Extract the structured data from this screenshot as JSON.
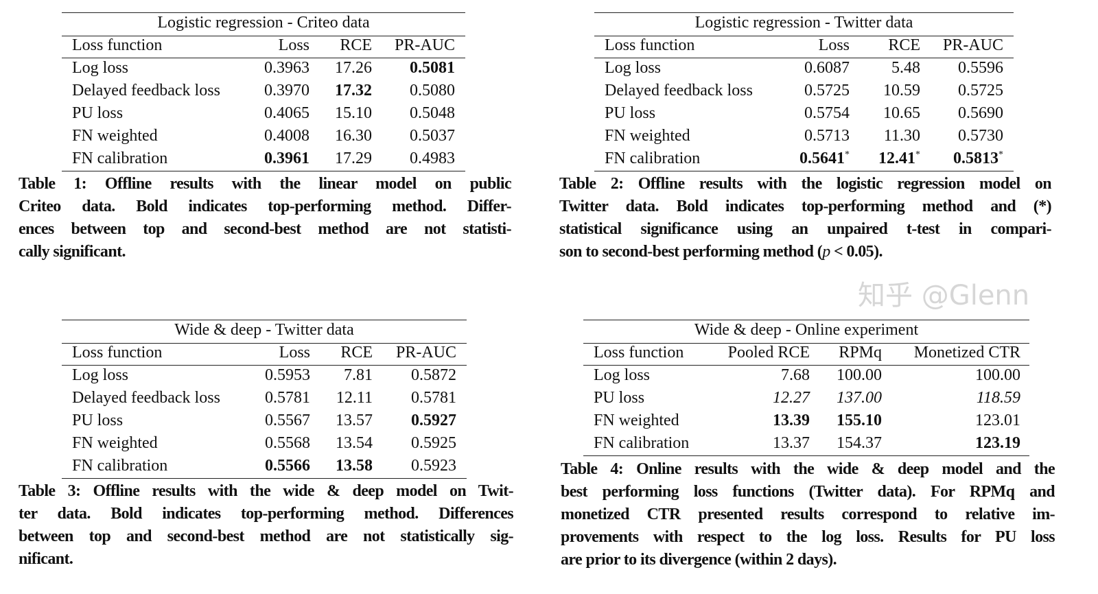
{
  "tables": [
    {
      "title": "Logistic regression - Criteo data",
      "headers": [
        "Loss function",
        "Loss",
        "RCE",
        "PR-AUC"
      ],
      "rows": [
        [
          {
            "v": "Log loss"
          },
          {
            "v": "0.3963"
          },
          {
            "v": "17.26"
          },
          {
            "v": "0.5081",
            "b": true
          }
        ],
        [
          {
            "v": "Delayed feedback loss"
          },
          {
            "v": "0.3970"
          },
          {
            "v": "17.32",
            "b": true
          },
          {
            "v": "0.5080"
          }
        ],
        [
          {
            "v": "PU loss"
          },
          {
            "v": "0.4065"
          },
          {
            "v": "15.10"
          },
          {
            "v": "0.5048"
          }
        ],
        [
          {
            "v": "FN weighted"
          },
          {
            "v": "0.4008"
          },
          {
            "v": "16.30"
          },
          {
            "v": "0.5037"
          }
        ],
        [
          {
            "v": "FN calibration"
          },
          {
            "v": "0.3961",
            "b": true
          },
          {
            "v": "17.29"
          },
          {
            "v": "0.4983"
          }
        ]
      ],
      "caption": [
        "Table 1: Offline results with the linear model on public",
        "Criteo data. Bold indicates top-performing method. Differ-",
        "ences between top and second-best method are not statisti-",
        "cally significant."
      ]
    },
    {
      "title": "Logistic regression - Twitter data",
      "headers": [
        "Loss function",
        "Loss",
        "RCE",
        "PR-AUC"
      ],
      "rows": [
        [
          {
            "v": "Log loss"
          },
          {
            "v": "0.6087"
          },
          {
            "v": "5.48"
          },
          {
            "v": "0.5596"
          }
        ],
        [
          {
            "v": "Delayed feedback loss"
          },
          {
            "v": "0.5725"
          },
          {
            "v": "10.59"
          },
          {
            "v": "0.5725"
          }
        ],
        [
          {
            "v": "PU loss"
          },
          {
            "v": "0.5754"
          },
          {
            "v": "10.65"
          },
          {
            "v": "0.5690"
          }
        ],
        [
          {
            "v": "FN weighted"
          },
          {
            "v": "0.5713"
          },
          {
            "v": "11.30"
          },
          {
            "v": "0.5730"
          }
        ],
        [
          {
            "v": "FN calibration"
          },
          {
            "v": "0.5641",
            "b": true,
            "s": "*"
          },
          {
            "v": "12.41",
            "b": true,
            "s": "*"
          },
          {
            "v": "0.5813",
            "b": true,
            "s": "*"
          }
        ]
      ],
      "caption": [
        "Table 2: Offline results with the logistic regression model on",
        "Twitter data. Bold indicates top-performing method and (*)",
        "statistical significance using an unpaired t-test in compari-"
      ],
      "caption_last": {
        "a": "son to second-best performing method (",
        "p": "p",
        "b": " < 0.05)."
      }
    },
    {
      "title": "Wide & deep - Twitter data",
      "headers": [
        "Loss function",
        "Loss",
        "RCE",
        "PR-AUC"
      ],
      "rows": [
        [
          {
            "v": "Log loss"
          },
          {
            "v": "0.5953"
          },
          {
            "v": "7.81"
          },
          {
            "v": "0.5872"
          }
        ],
        [
          {
            "v": "Delayed feedback loss"
          },
          {
            "v": "0.5781"
          },
          {
            "v": "12.11"
          },
          {
            "v": "0.5781"
          }
        ],
        [
          {
            "v": "PU loss"
          },
          {
            "v": "0.5567"
          },
          {
            "v": "13.57"
          },
          {
            "v": "0.5927",
            "b": true
          }
        ],
        [
          {
            "v": "FN weighted"
          },
          {
            "v": "0.5568"
          },
          {
            "v": "13.54"
          },
          {
            "v": "0.5925"
          }
        ],
        [
          {
            "v": "FN calibration"
          },
          {
            "v": "0.5566",
            "b": true
          },
          {
            "v": "13.58",
            "b": true
          },
          {
            "v": "0.5923"
          }
        ]
      ],
      "caption": [
        "Table 3: Offline results with the wide & deep model on Twit-",
        "ter data. Bold indicates top-performing method. Differences",
        "between top and second-best method are not statistically sig-",
        "nificant."
      ]
    },
    {
      "title": "Wide & deep - Online experiment",
      "headers": [
        "Loss function",
        "Pooled RCE",
        "RPMq",
        "Monetized CTR"
      ],
      "rows": [
        [
          {
            "v": "Log loss"
          },
          {
            "v": "7.68"
          },
          {
            "v": "100.00"
          },
          {
            "v": "100.00"
          }
        ],
        [
          {
            "v": "PU loss"
          },
          {
            "v": "12.27",
            "i": true
          },
          {
            "v": "137.00",
            "i": true
          },
          {
            "v": "118.59",
            "i": true
          }
        ],
        [
          {
            "v": "FN weighted"
          },
          {
            "v": "13.39",
            "b": true
          },
          {
            "v": "155.10",
            "b": true
          },
          {
            "v": "123.01"
          }
        ],
        [
          {
            "v": "FN calibration"
          },
          {
            "v": "13.37"
          },
          {
            "v": "154.37"
          },
          {
            "v": "123.19",
            "b": true
          }
        ]
      ],
      "caption": [
        "Table 4: Online results with the wide & deep model and the",
        "best performing loss functions (Twitter data). For RPMq and",
        "monetized CTR presented results correspond to relative im-",
        "provements with respect to the log loss. Results for PU loss",
        "are prior to its divergence (within 2 days)."
      ]
    }
  ],
  "watermark": "知乎 @Glenn"
}
